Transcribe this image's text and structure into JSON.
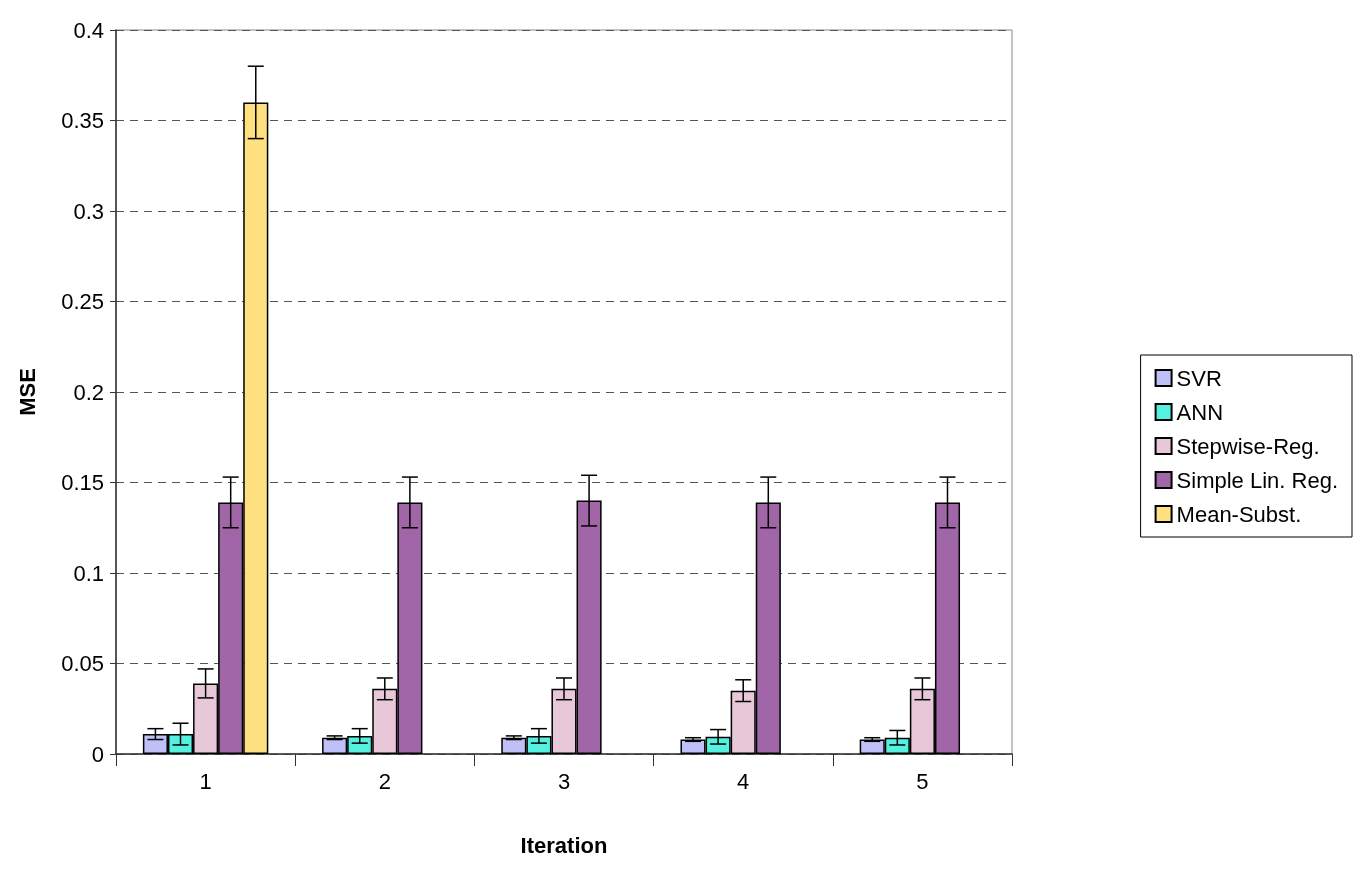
{
  "chart_data": {
    "type": "bar",
    "xlabel": "Iteration",
    "ylabel": "MSE",
    "categories": [
      "1",
      "2",
      "3",
      "4",
      "5"
    ],
    "series": [
      {
        "name": "SVR",
        "color": "#c0c0f8",
        "values": [
          0.011,
          0.009,
          0.009,
          0.008,
          0.008
        ],
        "errors": [
          0.003,
          0.001,
          0.001,
          0.001,
          0.001
        ]
      },
      {
        "name": "ANN",
        "color": "#55f0e0",
        "values": [
          0.011,
          0.01,
          0.01,
          0.0095,
          0.009
        ],
        "errors": [
          0.006,
          0.004,
          0.004,
          0.004,
          0.004
        ]
      },
      {
        "name": "Stepwise-Reg.",
        "color": "#e8c8d8",
        "values": [
          0.039,
          0.036,
          0.036,
          0.035,
          0.036
        ],
        "errors": [
          0.008,
          0.006,
          0.006,
          0.006,
          0.006
        ]
      },
      {
        "name": "Simple Lin. Reg.",
        "color": "#a066a8",
        "values": [
          0.139,
          0.139,
          0.14,
          0.139,
          0.139
        ],
        "errors": [
          0.014,
          0.014,
          0.014,
          0.014,
          0.014
        ]
      },
      {
        "name": "Mean-Subst.",
        "color": "#ffe080",
        "values": [
          0.36,
          null,
          null,
          null,
          null
        ],
        "errors": [
          0.02,
          null,
          null,
          null,
          null
        ]
      }
    ],
    "ylim": [
      0,
      0.4
    ],
    "yticks": [
      0,
      0.05,
      0.1,
      0.15,
      0.2,
      0.25,
      0.3,
      0.35,
      0.4
    ],
    "grid": "y",
    "legend": "right"
  }
}
